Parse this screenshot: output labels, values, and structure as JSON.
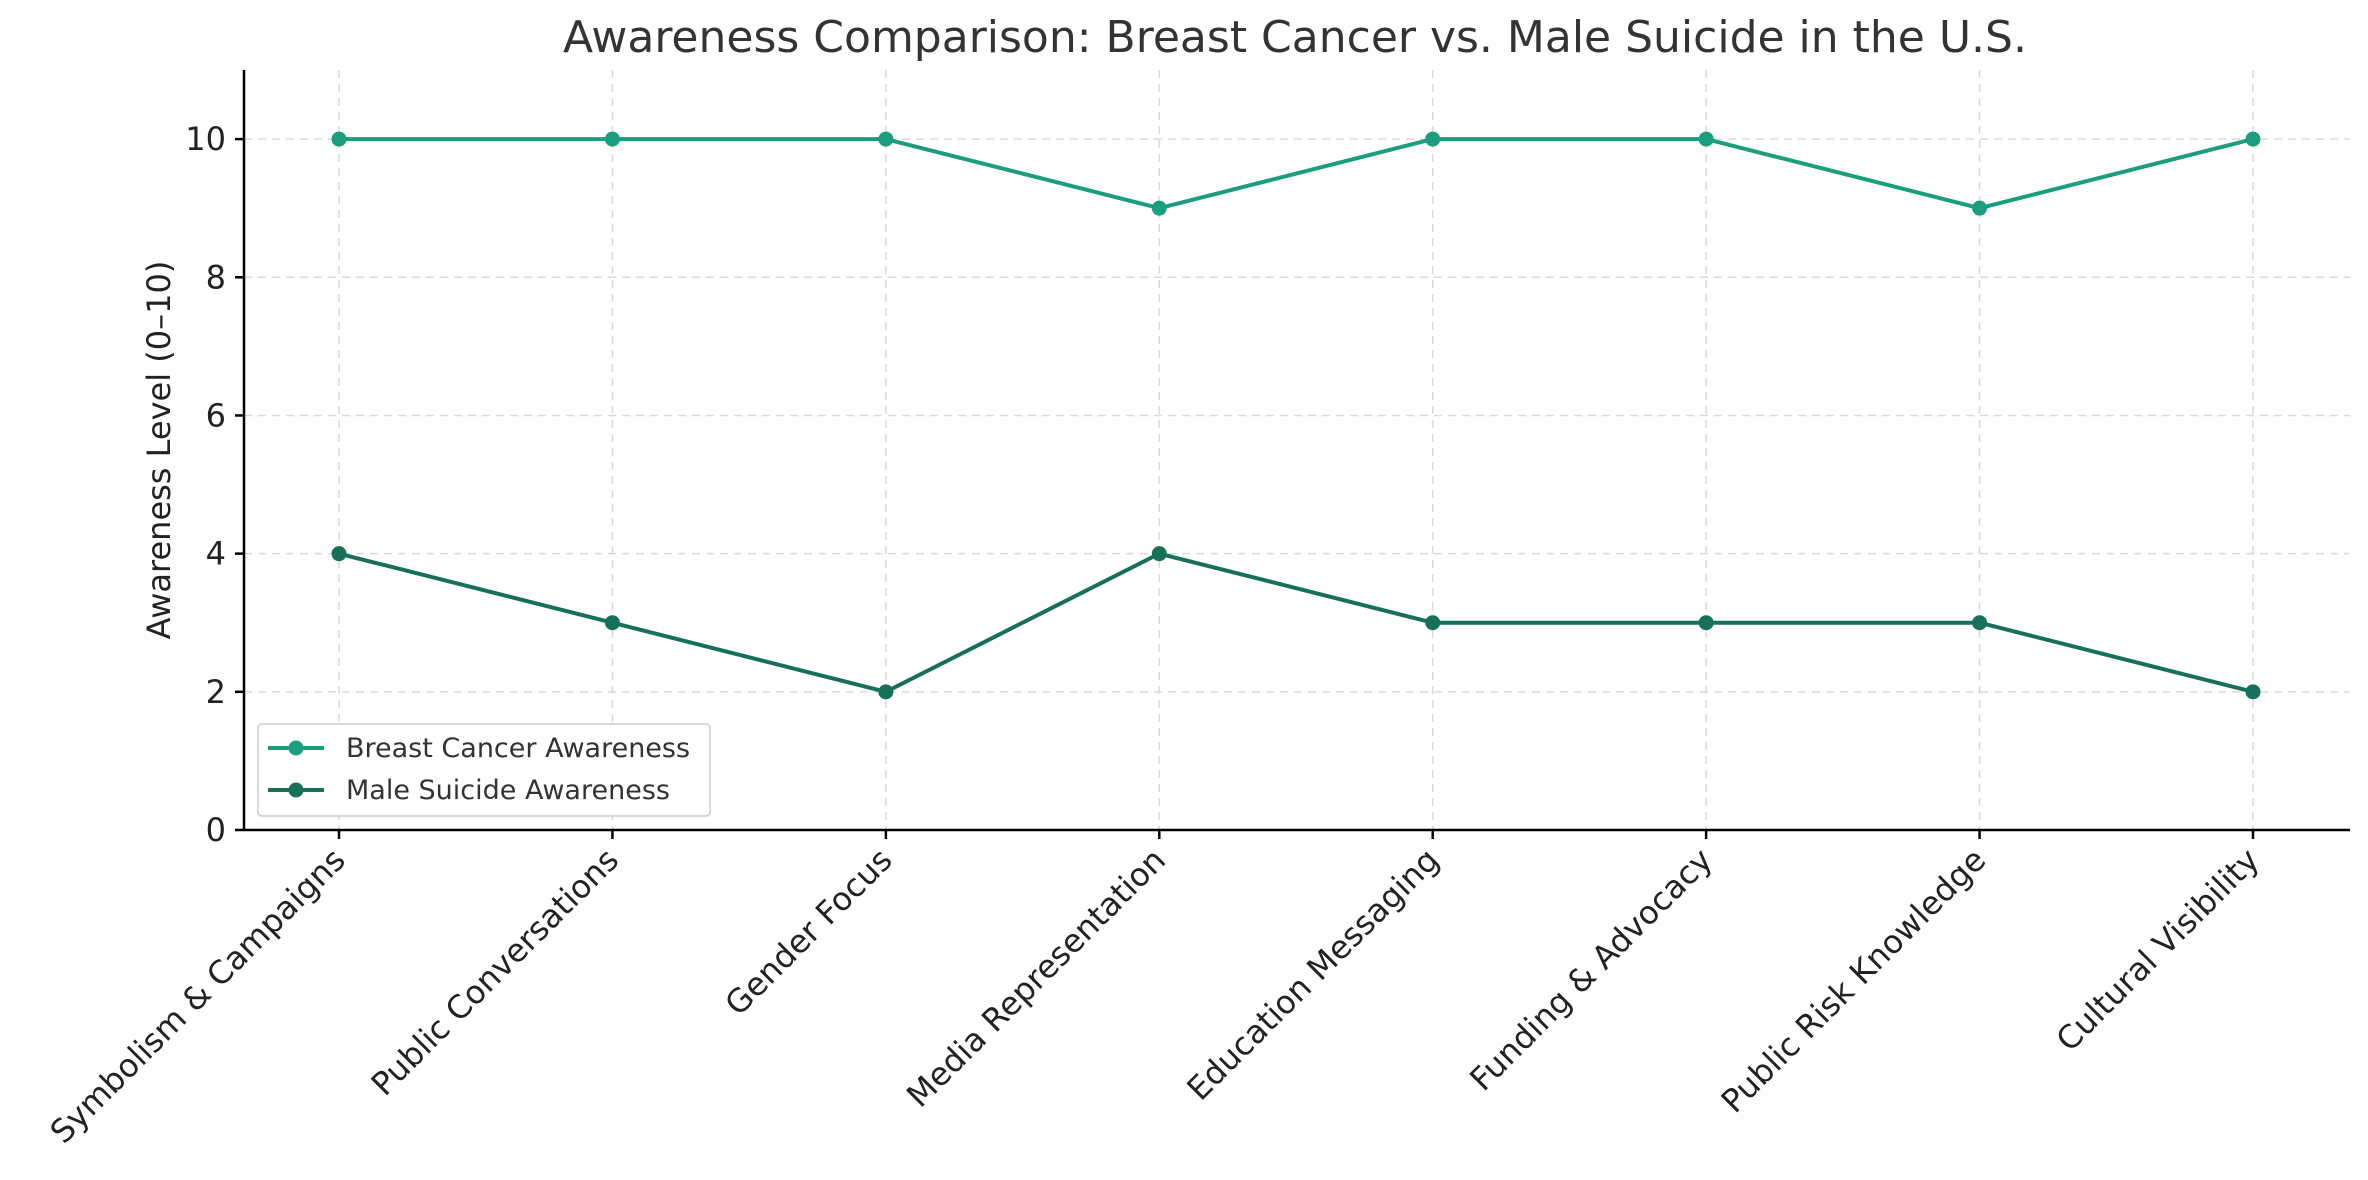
{
  "chart_data": {
    "type": "line",
    "title": "Awareness Comparison: Breast Cancer vs. Male Suicide in the U.S.",
    "xlabel": "",
    "ylabel": "Awareness Level (0–10)",
    "ylim": [
      0,
      11
    ],
    "yticks": [
      0,
      2,
      4,
      6,
      8,
      10
    ],
    "grid": true,
    "legend_position": "lower-left",
    "categories": [
      "Symbolism & Campaigns",
      "Public Conversations",
      "Gender Focus",
      "Media Representation",
      "Education Messaging",
      "Funding & Advocacy",
      "Public Risk Knowledge",
      "Cultural Visibility"
    ],
    "series": [
      {
        "name": "Breast Cancer Awareness",
        "color": "#1a9e7e",
        "values": [
          10,
          10,
          10,
          9,
          10,
          10,
          9,
          10
        ]
      },
      {
        "name": "Male Suicide Awareness",
        "color": "#16705b",
        "values": [
          4,
          3,
          2,
          4,
          3,
          3,
          3,
          2
        ]
      }
    ]
  }
}
